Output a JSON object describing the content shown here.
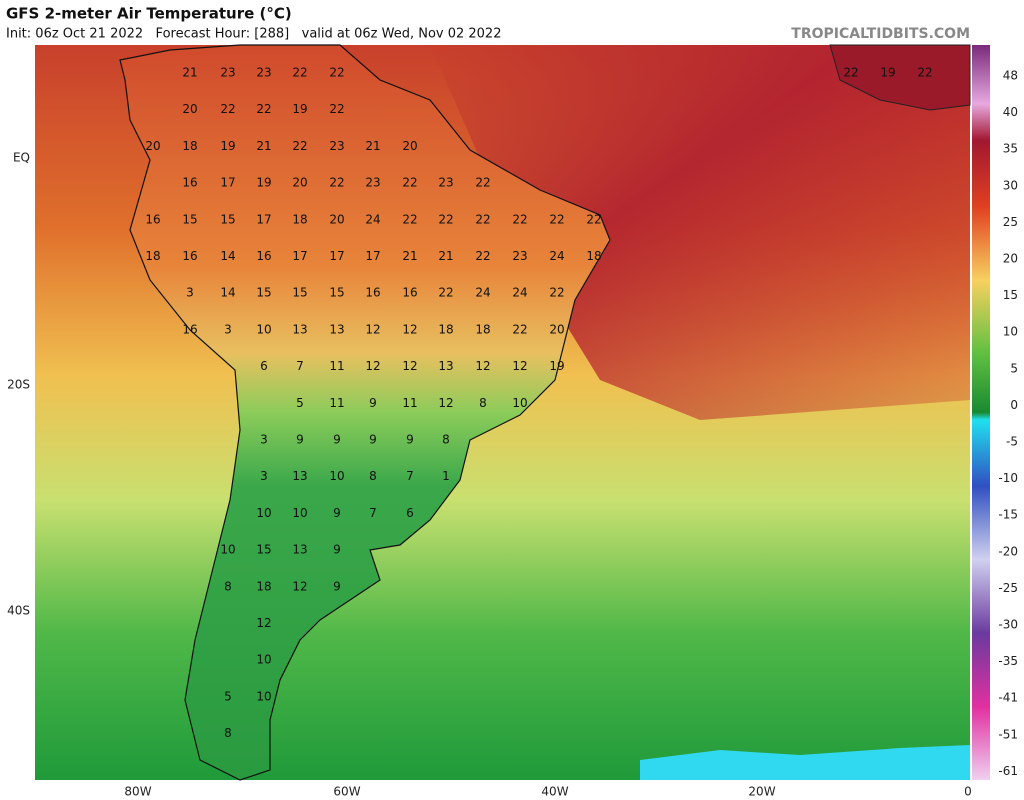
{
  "header": {
    "title": "GFS 2-meter Air Temperature (°C)",
    "subtitle": "Init: 06z Oct 21 2022   Forecast Hour: [288]   valid at 06z Wed, Nov 02 2022",
    "site": "TROPICALTIDBITS.COM"
  },
  "axes": {
    "x_labels": [
      "80W",
      "60W",
      "40W",
      "20W",
      "0"
    ],
    "y_labels": [
      "EQ",
      "20S",
      "40S"
    ]
  },
  "colorbar": {
    "labels": [
      48,
      40,
      35,
      30,
      25,
      20,
      15,
      10,
      5,
      0,
      -5,
      -10,
      -15,
      -20,
      -25,
      -30,
      -35,
      -41,
      -51,
      -61
    ]
  },
  "map": {
    "africa_values": [
      22,
      19,
      22
    ],
    "rows": [
      [
        21,
        23,
        23,
        22,
        22
      ],
      [
        20,
        22,
        22,
        19,
        22
      ],
      [
        20,
        18,
        19,
        21,
        22,
        23,
        21,
        20
      ],
      [
        16,
        17,
        19,
        20,
        22,
        23,
        22,
        23,
        22
      ],
      [
        16,
        15,
        15,
        17,
        18,
        20,
        24,
        22,
        22,
        22,
        22,
        22,
        22
      ],
      [
        18,
        16,
        14,
        16,
        17,
        17,
        17,
        21,
        21,
        22,
        23,
        24,
        18
      ],
      [
        3,
        14,
        15,
        15,
        15,
        16,
        16,
        22,
        24,
        24,
        22
      ],
      [
        16,
        3,
        10,
        13,
        13,
        12,
        12,
        18,
        18,
        22,
        20
      ],
      [
        6,
        7,
        11,
        12,
        12,
        13,
        12,
        12,
        19
      ],
      [
        5,
        11,
        9,
        11,
        12,
        8,
        10
      ],
      [
        3,
        9,
        9,
        9,
        9,
        8
      ],
      [
        3,
        13,
        10,
        8,
        7,
        1
      ],
      [
        10,
        10,
        9,
        7,
        6
      ],
      [
        10,
        15,
        13,
        9
      ],
      [
        8,
        18,
        12,
        9
      ],
      [
        12
      ],
      [
        10
      ],
      [
        5,
        10
      ],
      [
        8
      ]
    ]
  }
}
